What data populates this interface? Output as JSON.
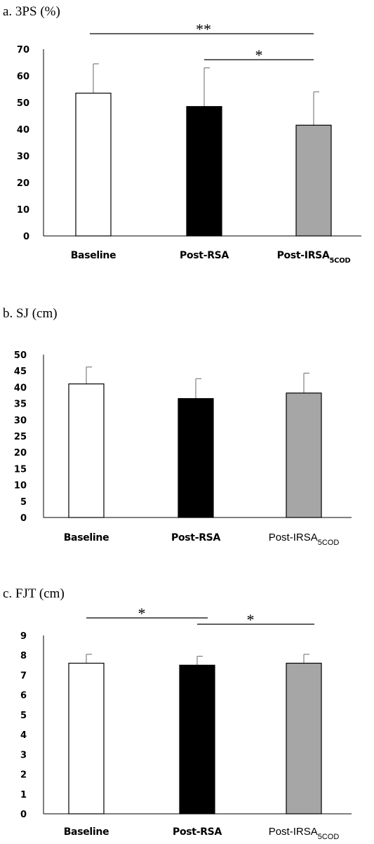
{
  "chart_data": [
    {
      "type": "bar",
      "title": "a. 3PS (%)",
      "categories": [
        "Baseline",
        "Post-RSA",
        "Post-IRSA5COD"
      ],
      "category_label_parts": [
        {
          "main": "Baseline",
          "sub": ""
        },
        {
          "main": "Post-RSA",
          "sub": ""
        },
        {
          "main": "Post-IRSA",
          "sub": "5COD"
        }
      ],
      "category_label_style": [
        "bold",
        "bold",
        "bold"
      ],
      "values": [
        53.5,
        48.5,
        41.5
      ],
      "errors": [
        11,
        14.5,
        12.5
      ],
      "bar_colors": [
        "#ffffff",
        "#000000",
        "#a6a6a6"
      ],
      "ylim": [
        0,
        70
      ],
      "yticks": [
        "0",
        "10",
        "20",
        "30",
        "40",
        "50",
        "60",
        "70"
      ],
      "significance": [
        {
          "from": 0,
          "to": 2,
          "label": "**"
        },
        {
          "from": 1,
          "to": 2,
          "label": "*"
        }
      ],
      "grid": false
    },
    {
      "type": "bar",
      "title": "b. SJ (cm)",
      "categories": [
        "Baseline",
        "Post-RSA",
        "Post-IRSA5COD"
      ],
      "category_label_parts": [
        {
          "main": "Baseline",
          "sub": ""
        },
        {
          "main": "Post-RSA",
          "sub": ""
        },
        {
          "main": "Post-IRSA",
          "sub": "5COD"
        }
      ],
      "category_label_style": [
        "bold",
        "bold",
        "plain"
      ],
      "values": [
        41,
        36.5,
        38.2
      ],
      "errors": [
        5.2,
        6.1,
        6.1
      ],
      "bar_colors": [
        "#ffffff",
        "#000000",
        "#a6a6a6"
      ],
      "ylim": [
        0,
        50
      ],
      "yticks": [
        "0",
        "5",
        "10",
        "15",
        "20",
        "25",
        "30",
        "35",
        "40",
        "45",
        "50"
      ],
      "significance": [],
      "grid": false
    },
    {
      "type": "bar",
      "title": "c. FJT (cm)",
      "categories": [
        "Baseline",
        "Post-RSA",
        "Post-IRSA5COD"
      ],
      "category_label_parts": [
        {
          "main": "Baseline",
          "sub": ""
        },
        {
          "main": "Post-RSA",
          "sub": ""
        },
        {
          "main": "Post-IRSA",
          "sub": "5COD"
        }
      ],
      "category_label_style": [
        "bold",
        "bold",
        "plain"
      ],
      "values": [
        7.6,
        7.5,
        7.6
      ],
      "errors": [
        0.45,
        0.45,
        0.45
      ],
      "bar_colors": [
        "#ffffff",
        "#000000",
        "#a6a6a6"
      ],
      "ylim": [
        0,
        9
      ],
      "yticks": [
        "0",
        "1",
        "2",
        "3",
        "4",
        "5",
        "6",
        "7",
        "8",
        "9"
      ],
      "significance": [
        {
          "from": 0,
          "to": 1,
          "label": "*"
        },
        {
          "from": 1,
          "to": 2,
          "label": "*"
        }
      ],
      "grid": false
    }
  ]
}
